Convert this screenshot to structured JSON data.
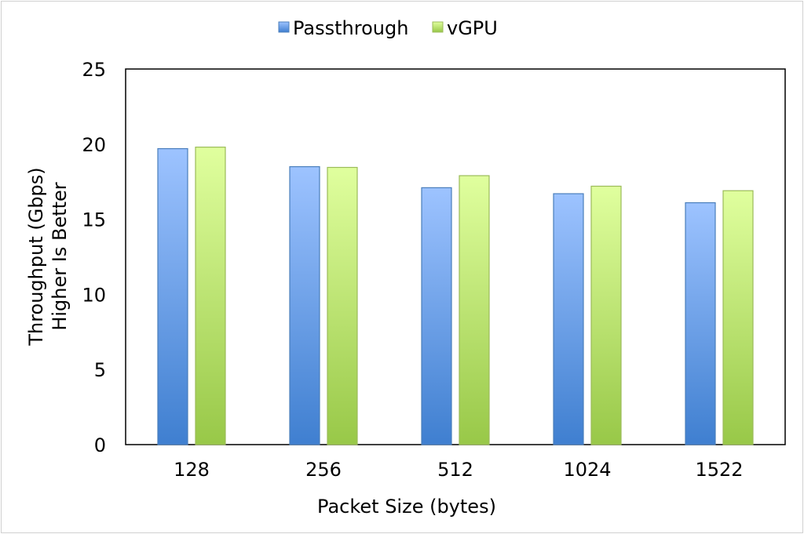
{
  "chart_data": {
    "type": "bar",
    "title": "",
    "xlabel": "Packet Size (bytes)",
    "ylabel_lines": [
      "Throughput (Gbps)",
      "Higher Is Better"
    ],
    "categories": [
      "128",
      "256",
      "512",
      "1024",
      "1522"
    ],
    "series": [
      {
        "name": "Passthrough",
        "values": [
          19.7,
          18.5,
          17.1,
          16.7,
          16.1
        ],
        "color_top": "#9dc3ff",
        "color_bottom": "#3f7fd0",
        "stroke": "#4a7ebb"
      },
      {
        "name": "vGPU",
        "values": [
          19.8,
          18.45,
          17.9,
          17.2,
          16.9
        ],
        "color_top": "#e0ff9e",
        "color_bottom": "#98c848",
        "stroke": "#9bbb59"
      }
    ],
    "ylim": [
      0,
      25
    ],
    "yticks": [
      "0",
      "5",
      "10",
      "15",
      "20",
      "25"
    ],
    "grid": false,
    "legend": "top-center"
  }
}
